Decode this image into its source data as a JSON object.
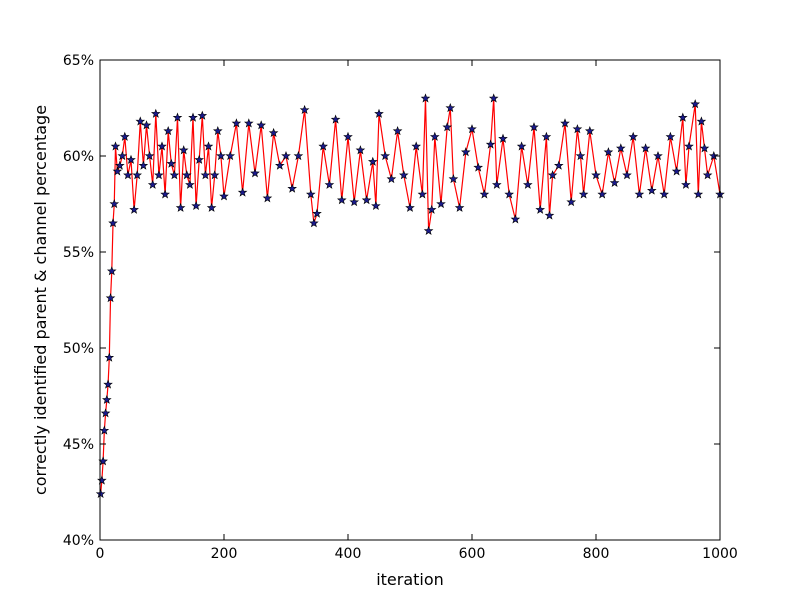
{
  "chart_data": {
    "type": "line",
    "title": "",
    "xlabel": "iteration",
    "ylabel": "correctly identified parent & channel percentage",
    "xlim": [
      0,
      1000
    ],
    "ylim": [
      0.4,
      0.65
    ],
    "x_ticks": [
      0,
      200,
      400,
      600,
      800,
      1000
    ],
    "x_tick_labels": [
      "0",
      "200",
      "400",
      "600",
      "800",
      "1000"
    ],
    "y_ticks": [
      0.4,
      0.45,
      0.5,
      0.55,
      0.6,
      0.65
    ],
    "y_tick_labels": [
      "40%",
      "45%",
      "50%",
      "55%",
      "60%",
      "65%"
    ],
    "grid": false,
    "legend": "none",
    "series": [
      {
        "line_color": "#ff0000",
        "marker": "star",
        "marker_fill": "#1a1a8c",
        "marker_edge": "#000000",
        "x": [
          1,
          3,
          5,
          7,
          9,
          11,
          13,
          15,
          17,
          19,
          21,
          23,
          25,
          28,
          32,
          36,
          40,
          45,
          50,
          55,
          60,
          65,
          70,
          75,
          80,
          85,
          90,
          95,
          100,
          105,
          110,
          115,
          120,
          125,
          130,
          135,
          140,
          145,
          150,
          155,
          160,
          165,
          170,
          175,
          180,
          185,
          190,
          195,
          200,
          210,
          220,
          230,
          240,
          250,
          260,
          270,
          280,
          290,
          300,
          310,
          320,
          330,
          340,
          345,
          350,
          360,
          370,
          380,
          390,
          400,
          410,
          420,
          430,
          440,
          445,
          450,
          460,
          470,
          480,
          490,
          500,
          510,
          520,
          525,
          530,
          535,
          540,
          550,
          560,
          565,
          570,
          580,
          590,
          600,
          610,
          620,
          630,
          635,
          640,
          650,
          660,
          670,
          680,
          690,
          700,
          710,
          720,
          725,
          730,
          740,
          750,
          760,
          770,
          775,
          780,
          790,
          800,
          810,
          820,
          830,
          840,
          850,
          860,
          870,
          880,
          890,
          900,
          910,
          920,
          930,
          940,
          945,
          950,
          960,
          965,
          970,
          975,
          980,
          990,
          1000
        ],
        "y": [
          0.424,
          0.431,
          0.441,
          0.457,
          0.466,
          0.473,
          0.481,
          0.495,
          0.526,
          0.54,
          0.565,
          0.575,
          0.605,
          0.592,
          0.595,
          0.6,
          0.61,
          0.59,
          0.598,
          0.572,
          0.59,
          0.618,
          0.595,
          0.616,
          0.6,
          0.585,
          0.622,
          0.59,
          0.605,
          0.58,
          0.613,
          0.596,
          0.59,
          0.62,
          0.573,
          0.603,
          0.59,
          0.585,
          0.62,
          0.574,
          0.598,
          0.621,
          0.59,
          0.605,
          0.573,
          0.59,
          0.613,
          0.6,
          0.579,
          0.6,
          0.617,
          0.581,
          0.617,
          0.591,
          0.616,
          0.578,
          0.612,
          0.595,
          0.6,
          0.583,
          0.6,
          0.624,
          0.58,
          0.565,
          0.57,
          0.605,
          0.585,
          0.619,
          0.577,
          0.61,
          0.576,
          0.603,
          0.577,
          0.597,
          0.574,
          0.622,
          0.6,
          0.588,
          0.613,
          0.59,
          0.573,
          0.605,
          0.58,
          0.63,
          0.561,
          0.572,
          0.61,
          0.575,
          0.615,
          0.625,
          0.588,
          0.573,
          0.602,
          0.614,
          0.594,
          0.58,
          0.606,
          0.63,
          0.585,
          0.609,
          0.58,
          0.567,
          0.605,
          0.585,
          0.615,
          0.572,
          0.61,
          0.569,
          0.59,
          0.595,
          0.617,
          0.576,
          0.614,
          0.6,
          0.58,
          0.613,
          0.59,
          0.58,
          0.602,
          0.586,
          0.604,
          0.59,
          0.61,
          0.58,
          0.604,
          0.582,
          0.6,
          0.58,
          0.61,
          0.592,
          0.62,
          0.585,
          0.605,
          0.627,
          0.58,
          0.618,
          0.604,
          0.59,
          0.6,
          0.58
        ]
      }
    ]
  }
}
